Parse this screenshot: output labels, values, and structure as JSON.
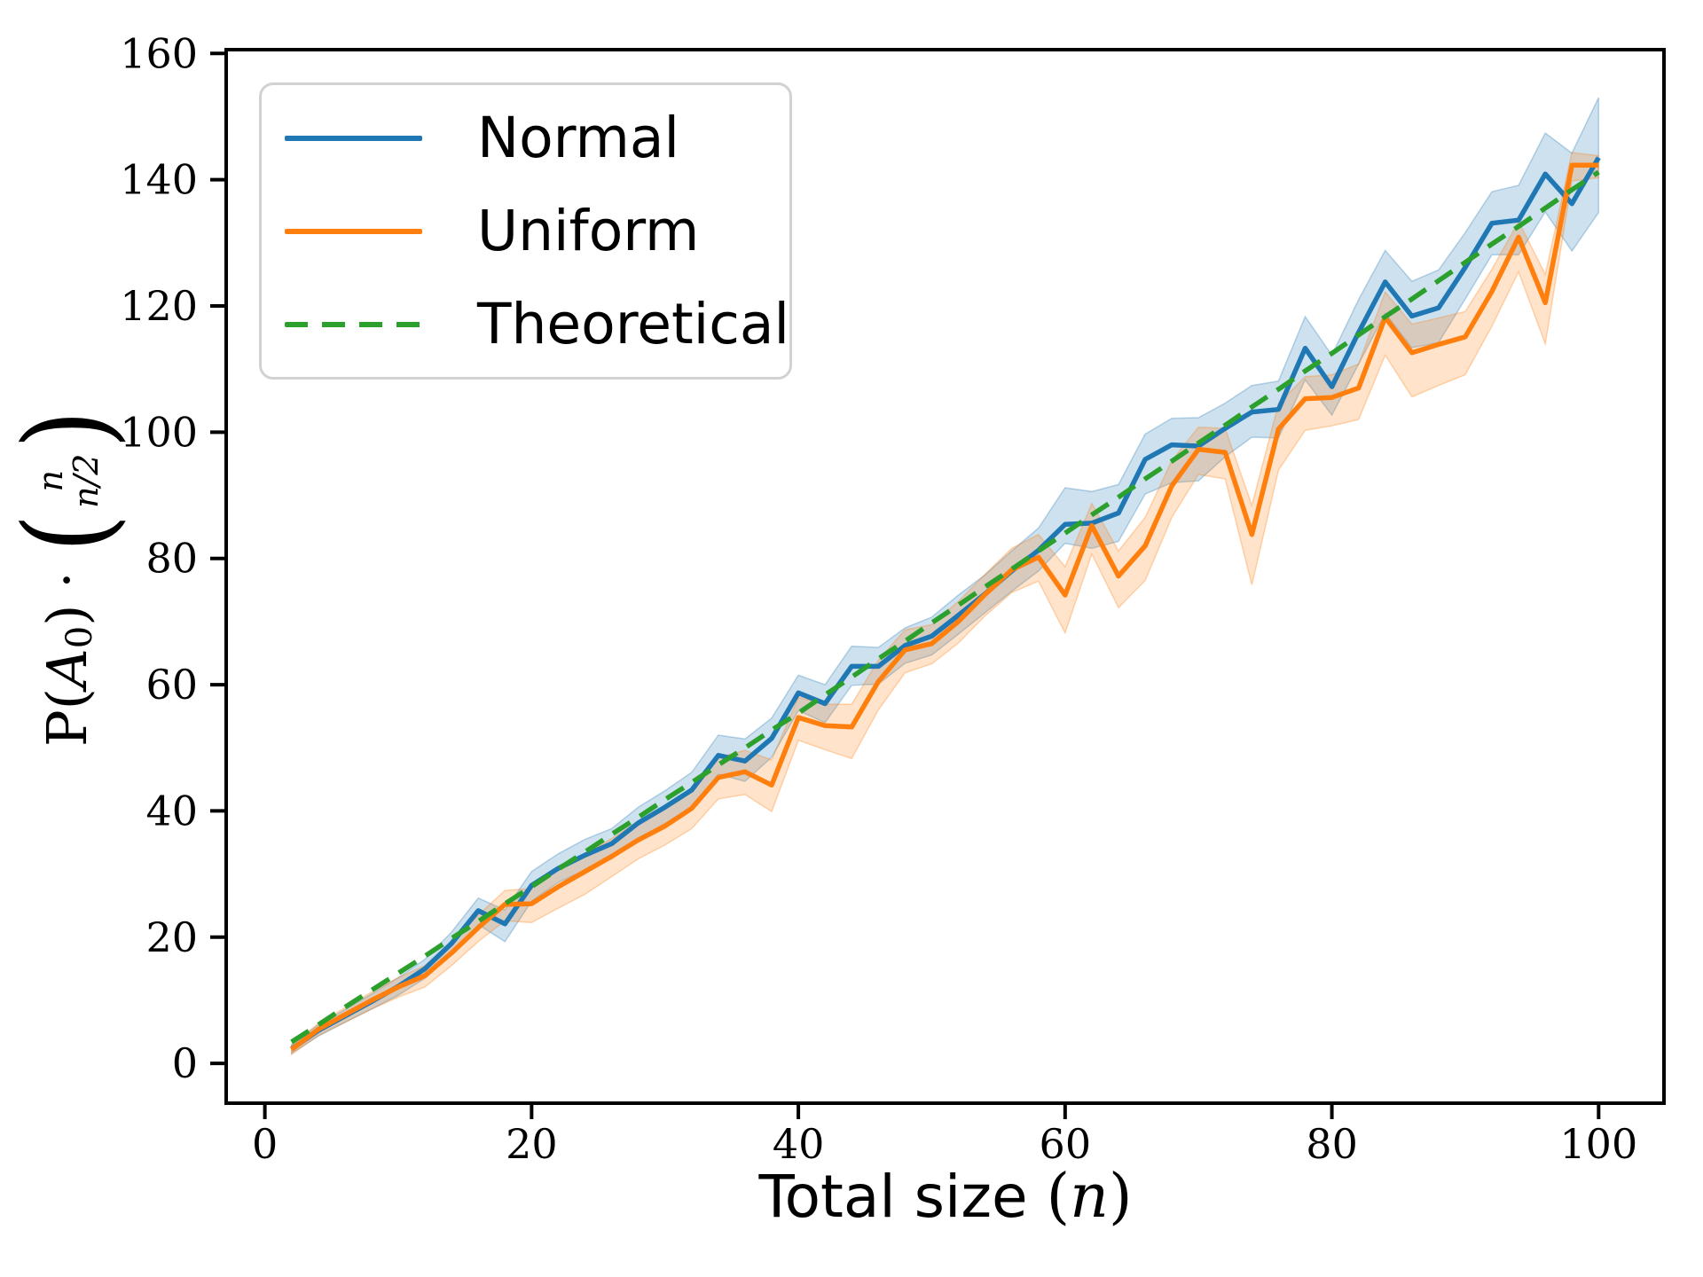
{
  "legend": {
    "entries": [
      {
        "label": "Normal",
        "color": "#1f77b4",
        "style": "solid"
      },
      {
        "label": "Uniform",
        "color": "#ff7f0e",
        "style": "solid"
      },
      {
        "label": "Theoretical",
        "color": "#2ca02c",
        "style": "dashed"
      }
    ]
  },
  "xlabel": {
    "prefix": "Total size ",
    "open": "(",
    "variable": "n",
    "close": ")"
  },
  "ylabel": {
    "func": "P",
    "open": "(",
    "event": "A",
    "sub": "0",
    "close": ")",
    "dot": "·",
    "binom_open": "(",
    "binom_top": "n",
    "binom_bottom": "n/2",
    "binom_close": ")"
  },
  "chart_data": {
    "type": "line",
    "title": "",
    "xlabel": "Total size (n)",
    "ylabel": "P(A_0) · C(n, n/2)",
    "grid": false,
    "legend_position": "upper left",
    "xlim": [
      -2.9,
      104.9
    ],
    "ylim": [
      -6.3,
      160.6
    ],
    "x_ticks": [
      0,
      20,
      40,
      60,
      80,
      100
    ],
    "y_ticks": [
      0,
      20,
      40,
      60,
      80,
      100,
      120,
      140,
      160
    ],
    "x": [
      2,
      4,
      6,
      8,
      10,
      12,
      14,
      16,
      18,
      20,
      22,
      24,
      26,
      28,
      30,
      32,
      34,
      36,
      38,
      40,
      42,
      44,
      46,
      48,
      50,
      52,
      54,
      56,
      58,
      60,
      62,
      64,
      66,
      68,
      70,
      72,
      74,
      76,
      78,
      80,
      82,
      84,
      86,
      88,
      90,
      92,
      94,
      96,
      98,
      100
    ],
    "series": [
      {
        "name": "Normal",
        "color": "#1f77b4",
        "style": "solid",
        "values": [
          2.3,
          5.2,
          7.5,
          9.8,
          12.2,
          15.0,
          19.0,
          24.2,
          22.1,
          28.2,
          30.9,
          33.0,
          34.8,
          38.1,
          40.6,
          43.3,
          48.8,
          47.9,
          51.5,
          58.7,
          57.0,
          62.9,
          62.9,
          66.2,
          67.7,
          71.0,
          74.4,
          78.0,
          81.3,
          85.4,
          85.6,
          87.2,
          95.7,
          98.0,
          97.8,
          100.6,
          103.2,
          103.6,
          113.3,
          107.2,
          115.8,
          123.8,
          118.4,
          119.7,
          126.1,
          133.1,
          133.6,
          140.9,
          136.2,
          143.5
        ],
        "band_plus": [
          0.7,
          0.9,
          1.0,
          1.2,
          1.4,
          1.5,
          1.8,
          2.0,
          2.2,
          2.2,
          2.3,
          2.5,
          2.4,
          2.5,
          2.6,
          2.8,
          3.2,
          3.5,
          3.2,
          2.8,
          3.0,
          3.2,
          3.0,
          2.8,
          3.0,
          3.2,
          3.0,
          3.2,
          3.5,
          5.8,
          5.0,
          4.5,
          4.0,
          4.2,
          4.5,
          4.0,
          4.2,
          4.5,
          5.0,
          5.0,
          5.2,
          5.0,
          5.5,
          6.0,
          5.5,
          5.0,
          5.5,
          6.5,
          8.0,
          9.5
        ],
        "band_minus": [
          0.7,
          0.9,
          1.0,
          1.2,
          1.4,
          1.5,
          1.8,
          2.2,
          2.8,
          2.5,
          2.2,
          2.4,
          2.4,
          2.5,
          2.6,
          2.8,
          3.0,
          3.2,
          3.0,
          2.8,
          3.0,
          3.0,
          2.8,
          2.8,
          3.0,
          3.0,
          3.0,
          3.2,
          3.3,
          3.0,
          4.0,
          4.5,
          5.5,
          6.0,
          5.5,
          4.5,
          4.0,
          4.5,
          5.0,
          4.5,
          5.0,
          5.0,
          5.0,
          5.5,
          5.0,
          5.0,
          5.5,
          6.0,
          7.5,
          8.7
        ]
      },
      {
        "name": "Uniform",
        "color": "#ff7f0e",
        "style": "solid",
        "values": [
          2.2,
          5.4,
          7.7,
          10.0,
          12.1,
          13.9,
          17.5,
          21.5,
          25.2,
          25.3,
          28.0,
          30.4,
          32.8,
          35.4,
          37.6,
          40.4,
          45.3,
          46.2,
          44.1,
          54.8,
          53.5,
          53.3,
          60.5,
          65.5,
          66.5,
          70.0,
          74.3,
          78.2,
          80.2,
          74.2,
          85.2,
          77.2,
          82.0,
          91.5,
          97.3,
          96.8,
          83.8,
          100.5,
          105.3,
          105.5,
          107.0,
          118.2,
          112.6,
          113.9,
          115.1,
          122.3,
          130.9,
          120.5,
          142.3,
          142.3
        ],
        "band_plus": [
          0.7,
          0.9,
          1.1,
          1.3,
          1.5,
          1.6,
          1.8,
          2.0,
          2.2,
          2.4,
          2.6,
          2.8,
          2.8,
          3.0,
          3.0,
          3.0,
          3.2,
          3.4,
          4.0,
          3.2,
          3.4,
          3.6,
          3.4,
          3.2,
          3.0,
          3.2,
          3.2,
          3.4,
          3.6,
          4.5,
          3.5,
          4.0,
          4.5,
          4.0,
          3.5,
          3.8,
          4.6,
          4.0,
          3.5,
          3.6,
          3.8,
          4.0,
          4.5,
          4.2,
          4.0,
          3.5,
          2.5,
          4.5,
          2.0,
          1.5
        ],
        "band_minus": [
          0.8,
          1.0,
          1.2,
          1.4,
          1.6,
          1.8,
          2.0,
          2.2,
          2.6,
          3.0,
          3.4,
          3.6,
          3.2,
          3.0,
          3.0,
          3.2,
          3.4,
          3.6,
          4.2,
          3.6,
          3.8,
          5.0,
          4.5,
          3.6,
          3.2,
          3.4,
          3.4,
          3.6,
          3.8,
          6.0,
          4.5,
          5.0,
          5.5,
          5.0,
          4.0,
          4.2,
          8.0,
          6.5,
          5.0,
          4.5,
          5.0,
          6.0,
          7.0,
          6.5,
          6.0,
          5.5,
          5.5,
          6.5,
          2.5,
          2.0
        ]
      },
      {
        "name": "Theoretical",
        "color": "#2ca02c",
        "style": "dashed",
        "values": [
          3.4,
          6.1,
          8.9,
          11.6,
          14.3,
          17.0,
          19.8,
          22.5,
          25.3,
          28.0,
          30.8,
          33.5,
          36.3,
          39.0,
          41.8,
          44.5,
          47.3,
          50.0,
          52.8,
          55.5,
          58.4,
          61.2,
          64.1,
          66.9,
          69.8,
          72.6,
          75.5,
          78.3,
          81.2,
          84.0,
          86.9,
          89.7,
          92.6,
          95.4,
          98.3,
          101.1,
          104.0,
          106.8,
          109.7,
          112.5,
          115.4,
          118.3,
          121.1,
          124.0,
          126.9,
          129.8,
          132.6,
          135.5,
          138.4,
          141.2
        ]
      }
    ]
  }
}
